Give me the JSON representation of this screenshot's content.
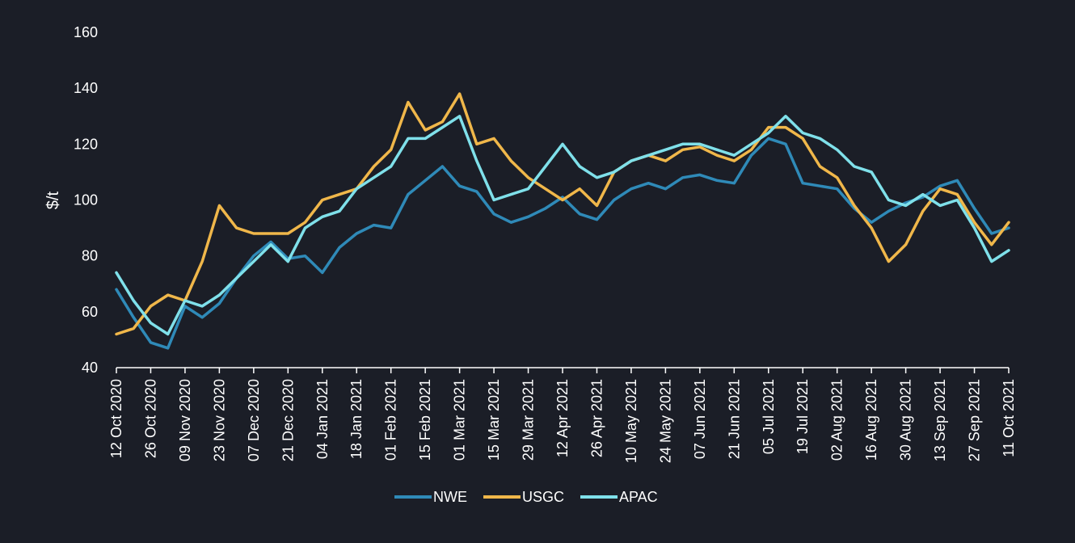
{
  "chart_data": {
    "type": "line",
    "title": "",
    "xlabel": "",
    "ylabel": "$/t",
    "ylim": [
      40,
      160
    ],
    "yticks": [
      40,
      60,
      80,
      100,
      120,
      140,
      160
    ],
    "x_tick_labels": [
      "12 Oct 2020",
      "26 Oct 2020",
      "09 Nov 2020",
      "23 Nov 2020",
      "07 Dec 2020",
      "21 Dec 2020",
      "04 Jan 2021",
      "18 Jan 2021",
      "01 Feb 2021",
      "15 Feb 2021",
      "01 Mar 2021",
      "15 Mar 2021",
      "29 Mar 2021",
      "12 Apr 2021",
      "26 Apr 2021",
      "10 May 2021",
      "24 May 2021",
      "07 Jun 2021",
      "21 Jun 2021",
      "05 Jul 2021",
      "19 Jul 2021",
      "02 Aug 2021",
      "16 Aug 2021",
      "30 Aug 2021",
      "13 Sep 2021",
      "27 Sep 2021",
      "11 Oct 2021"
    ],
    "x_dates": [
      "2020-10-12",
      "2020-10-19",
      "2020-10-26",
      "2020-11-02",
      "2020-11-09",
      "2020-11-16",
      "2020-11-23",
      "2020-11-30",
      "2020-12-07",
      "2020-12-14",
      "2020-12-21",
      "2020-12-28",
      "2021-01-04",
      "2021-01-11",
      "2021-01-18",
      "2021-01-25",
      "2021-02-01",
      "2021-02-08",
      "2021-02-15",
      "2021-02-22",
      "2021-03-01",
      "2021-03-08",
      "2021-03-15",
      "2021-03-22",
      "2021-03-29",
      "2021-04-05",
      "2021-04-12",
      "2021-04-19",
      "2021-04-26",
      "2021-05-03",
      "2021-05-10",
      "2021-05-17",
      "2021-05-24",
      "2021-05-31",
      "2021-06-07",
      "2021-06-14",
      "2021-06-21",
      "2021-06-28",
      "2021-07-05",
      "2021-07-12",
      "2021-07-19",
      "2021-07-26",
      "2021-08-02",
      "2021-08-09",
      "2021-08-16",
      "2021-08-23",
      "2021-08-30",
      "2021-09-06",
      "2021-09-13",
      "2021-09-20",
      "2021-09-27",
      "2021-10-04",
      "2021-10-11"
    ],
    "series": [
      {
        "name": "NWE",
        "color": "#2f8ab8",
        "values": [
          68,
          58,
          49,
          47,
          62,
          58,
          63,
          72,
          80,
          85,
          79,
          80,
          74,
          83,
          88,
          91,
          90,
          102,
          107,
          112,
          105,
          103,
          95,
          92,
          94,
          97,
          101,
          95,
          93,
          100,
          104,
          106,
          104,
          108,
          109,
          107,
          106,
          116,
          122,
          120,
          106,
          105,
          104,
          97,
          92,
          96,
          99,
          101,
          105,
          107,
          97,
          88,
          90
        ]
      },
      {
        "name": "USGC",
        "color": "#f0b74a",
        "values": [
          52,
          54,
          62,
          66,
          64,
          78,
          98,
          90,
          88,
          88,
          88,
          92,
          100,
          102,
          104,
          112,
          118,
          135,
          125,
          128,
          138,
          120,
          122,
          114,
          108,
          104,
          100,
          104,
          98,
          110,
          114,
          116,
          114,
          118,
          119,
          116,
          114,
          118,
          126,
          126,
          122,
          112,
          108,
          98,
          90,
          78,
          84,
          96,
          104,
          102,
          92,
          84,
          92
        ]
      },
      {
        "name": "APAC",
        "color": "#7fe0ea",
        "values": [
          74,
          64,
          56,
          52,
          64,
          62,
          66,
          72,
          78,
          84,
          78,
          90,
          94,
          96,
          104,
          108,
          112,
          122,
          122,
          126,
          130,
          114,
          100,
          102,
          104,
          112,
          120,
          112,
          108,
          110,
          114,
          116,
          118,
          120,
          120,
          118,
          116,
          120,
          124,
          130,
          124,
          122,
          118,
          112,
          110,
          100,
          98,
          102,
          98,
          100,
          90,
          78,
          82
        ]
      }
    ],
    "legend": {
      "position": "bottom-center",
      "entries": [
        "NWE",
        "USGC",
        "APAC"
      ]
    },
    "grid": false
  }
}
